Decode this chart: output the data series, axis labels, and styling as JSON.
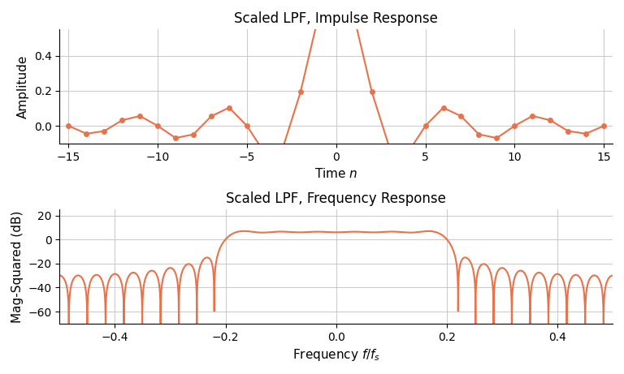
{
  "title1": "Scaled LPF, Impulse Response",
  "title2": "Scaled LPF, Frequency Response",
  "xlabel1": "Time $n$",
  "xlabel2": "Frequency $f/f_s$",
  "ylabel1": "Amplitude",
  "ylabel2": "Mag-Squared (dB)",
  "line_color": "#E8724A",
  "marker": "o",
  "markersize": 4,
  "linewidth": 1.5,
  "n_taps": 31,
  "cutoff": 0.2,
  "ylim1": [
    -0.1,
    0.55
  ],
  "ylim2": [
    -70,
    25
  ],
  "xlim1": [
    -15.5,
    15.5
  ],
  "xlim2": [
    -0.5,
    0.5
  ],
  "yticks2": [
    20,
    0,
    -20,
    -40,
    -60
  ],
  "xticks1": [
    -15,
    -10,
    -5,
    0,
    5,
    10,
    15
  ],
  "xticks2": [
    -0.4,
    -0.2,
    0.0,
    0.2,
    0.4
  ],
  "figsize": [
    7.68,
    4.61
  ],
  "dpi": 100,
  "grid_color": "#cccccc",
  "grid_linewidth": 0.8
}
